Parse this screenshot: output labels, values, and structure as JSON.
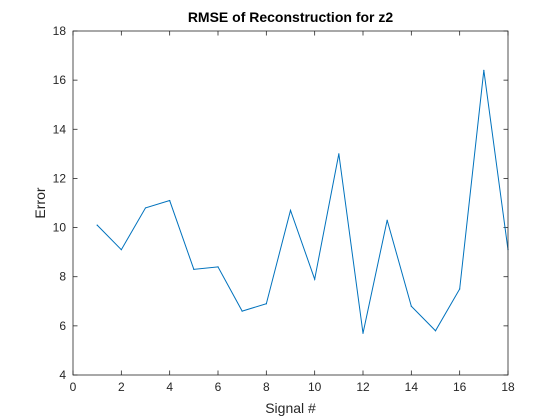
{
  "chart_data": {
    "type": "line",
    "title": "RMSE of Reconstruction for z2",
    "xlabel": "Signal #",
    "ylabel": "Error",
    "xlim": [
      0,
      18
    ],
    "ylim": [
      4,
      18
    ],
    "xticks": [
      0,
      2,
      4,
      6,
      8,
      10,
      12,
      14,
      16,
      18
    ],
    "yticks": [
      4,
      6,
      8,
      10,
      12,
      14,
      16,
      18
    ],
    "grid": false,
    "series": [
      {
        "color": "#0072bd",
        "x": [
          1,
          2,
          3,
          4,
          5,
          6,
          7,
          8,
          9,
          10,
          11,
          12,
          13,
          14,
          15,
          16,
          17,
          18
        ],
        "y": [
          10.1,
          9.1,
          10.8,
          11.1,
          8.3,
          8.4,
          6.6,
          6.9,
          10.7,
          7.9,
          13.0,
          5.7,
          10.3,
          6.8,
          5.8,
          7.5,
          16.4,
          9.1
        ]
      }
    ],
    "colors": {
      "axis": "#262626",
      "line": "#0072bd"
    }
  }
}
